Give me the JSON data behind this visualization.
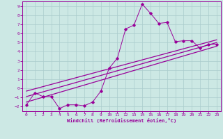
{
  "xlabel": "Windchill (Refroidissement éolien,°C)",
  "xlim": [
    -0.5,
    23.5
  ],
  "ylim": [
    -2.5,
    9.5
  ],
  "xticks": [
    0,
    1,
    2,
    3,
    4,
    5,
    6,
    7,
    8,
    9,
    10,
    11,
    12,
    13,
    14,
    15,
    16,
    17,
    18,
    19,
    20,
    21,
    22,
    23
  ],
  "yticks": [
    -2,
    -1,
    0,
    1,
    2,
    3,
    4,
    5,
    6,
    7,
    8,
    9
  ],
  "bg_color": "#cce8e4",
  "line_color": "#990099",
  "grid_color": "#aacccc",
  "line1_x": [
    0,
    1,
    2,
    3,
    4,
    5,
    6,
    7,
    8,
    9,
    10,
    11,
    12,
    13,
    14,
    15,
    16,
    17,
    18,
    19,
    20,
    21,
    22,
    23
  ],
  "line1_y": [
    -1.8,
    -0.5,
    -0.9,
    -0.9,
    -2.2,
    -1.8,
    -1.8,
    -1.9,
    -1.5,
    -0.3,
    2.2,
    3.3,
    6.5,
    6.9,
    9.2,
    8.2,
    7.1,
    7.2,
    5.1,
    5.2,
    5.2,
    4.4,
    4.8,
    4.8
  ],
  "line2_x": [
    0,
    23
  ],
  "line2_y": [
    -1.5,
    4.6
  ],
  "line3_x": [
    0,
    23
  ],
  "line3_y": [
    -0.9,
    5.0
  ],
  "line4_x": [
    0,
    23
  ],
  "line4_y": [
    -0.3,
    5.3
  ]
}
